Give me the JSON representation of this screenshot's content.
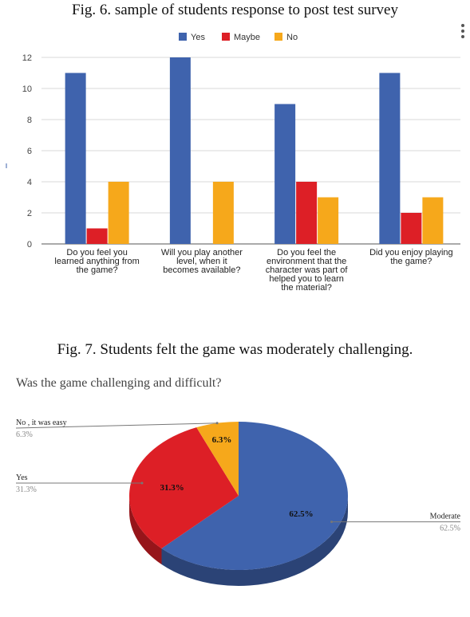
{
  "fig6_caption": "Fig. 6.  sample of students response to post test survey",
  "fig7_caption": "Fig. 7.  Students felt the game was moderately challenging.",
  "chart_data": [
    {
      "type": "bar",
      "title": "",
      "categories": [
        [
          "Do you feel you",
          "learned anything from",
          "the game?"
        ],
        [
          "Will you play another",
          "level, when it",
          "becomes available?"
        ],
        [
          "Do you feel the",
          "environment that the",
          "character was part of",
          "helped you to learn",
          "the material?"
        ],
        [
          "Did you enjoy playing",
          "the game?"
        ]
      ],
      "series": [
        {
          "name": "Yes",
          "values": [
            11,
            12,
            9,
            11
          ],
          "color": "#3f63ad"
        },
        {
          "name": "Maybe",
          "values": [
            1,
            0,
            4,
            2
          ],
          "color": "#dd1f26"
        },
        {
          "name": "No",
          "values": [
            4,
            4,
            3,
            3
          ],
          "color": "#f6a81b"
        }
      ],
      "yticks": [
        "0",
        "2",
        "4",
        "6",
        "8",
        "10",
        "12"
      ],
      "ylim": [
        0,
        12
      ],
      "grid": true,
      "legend": "top-center"
    },
    {
      "type": "pie",
      "title": "Was the game challenging and difficult?",
      "slices": [
        {
          "label": "Moderate",
          "value": 62.5,
          "pct_text": "62.5%",
          "color": "#3f63ad"
        },
        {
          "label": "Yes",
          "value": 31.3,
          "pct_text": "31.3%",
          "color": "#dd1f26"
        },
        {
          "label": "No , it was easy",
          "value": 6.3,
          "pct_text": "6.3%",
          "color": "#f6a81b"
        }
      ]
    }
  ]
}
